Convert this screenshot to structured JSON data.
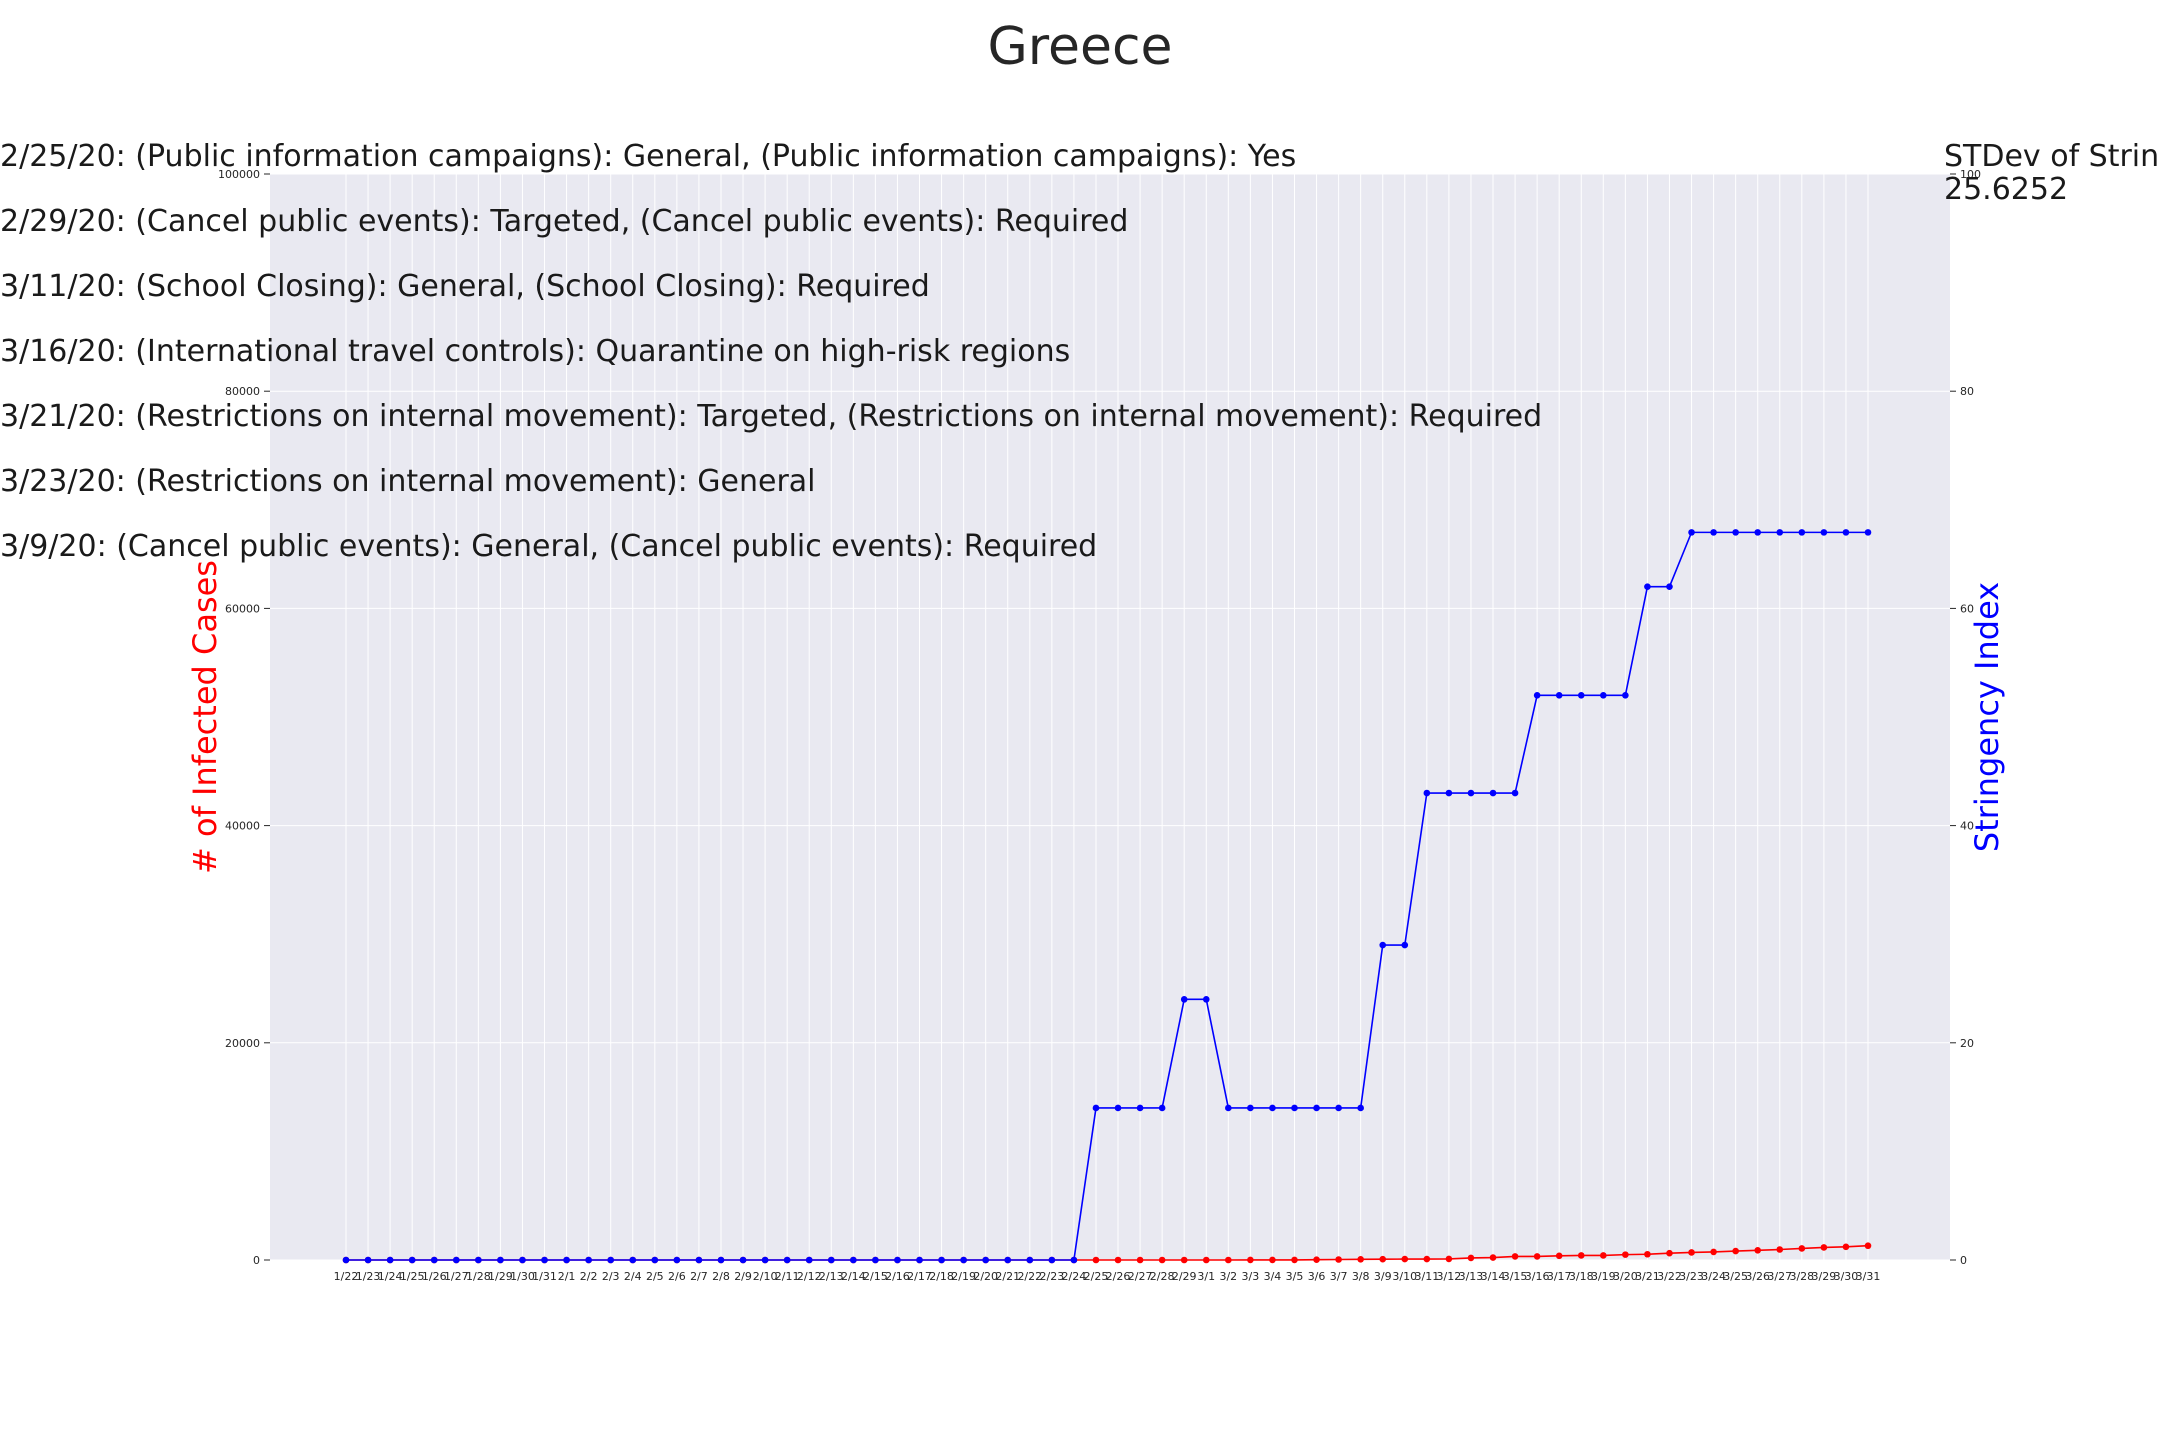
{
  "chart_data": {
    "type": "line",
    "title": "Greece",
    "ylabel_left": "# of Infected Cases",
    "ylabel_right": "Stringency Index",
    "ylim_left": [
      0,
      100000
    ],
    "ylim_right": [
      0,
      100
    ],
    "yticks_left": [
      "0",
      "20000",
      "40000",
      "60000",
      "80000",
      "100000"
    ],
    "yticks_right": [
      "0",
      "20",
      "40",
      "60",
      "80",
      "100"
    ],
    "grid": true,
    "colors": {
      "cases": "#ff0000",
      "stringency": "#0000ff",
      "plot_bg": "#e9e9f1",
      "grid": "#ffffff"
    },
    "categories": [
      "1/22",
      "1/23",
      "1/24",
      "1/25",
      "1/26",
      "1/27",
      "1/28",
      "1/29",
      "1/30",
      "1/31",
      "2/1",
      "2/2",
      "2/3",
      "2/4",
      "2/5",
      "2/6",
      "2/7",
      "2/8",
      "2/9",
      "2/10",
      "2/11",
      "2/12",
      "2/13",
      "2/14",
      "2/15",
      "2/16",
      "2/17",
      "2/18",
      "2/19",
      "2/20",
      "2/21",
      "2/22",
      "2/23",
      "2/24",
      "2/25",
      "2/26",
      "2/27",
      "2/28",
      "2/29",
      "3/1",
      "3/2",
      "3/3",
      "3/4",
      "3/5",
      "3/6",
      "3/7",
      "3/8",
      "3/9",
      "3/10",
      "3/11",
      "3/12",
      "3/13",
      "3/14",
      "3/15",
      "3/16",
      "3/17",
      "3/18",
      "3/19",
      "3/20",
      "3/21",
      "3/22",
      "3/23",
      "3/24",
      "3/25",
      "3/26",
      "3/27",
      "3/28",
      "3/29",
      "3/30",
      "3/31"
    ],
    "series": [
      {
        "axis": "left",
        "values": [
          0,
          0,
          0,
          0,
          0,
          0,
          0,
          0,
          0,
          0,
          0,
          0,
          0,
          0,
          0,
          0,
          0,
          0,
          0,
          0,
          0,
          0,
          0,
          0,
          0,
          0,
          0,
          0,
          0,
          0,
          0,
          0,
          0,
          0,
          0,
          0,
          0,
          0,
          0,
          0,
          0,
          7,
          7,
          9,
          31,
          45,
          66,
          73,
          84,
          89,
          99,
          190,
          228,
          331,
          331,
          387,
          418,
          418,
          495,
          530,
          624,
          695,
          743,
          821,
          892,
          966,
          1061,
          1156,
          1212,
          1314
        ]
      },
      {
        "axis": "right",
        "values": [
          0,
          0,
          0,
          0,
          0,
          0,
          0,
          0,
          0,
          0,
          0,
          0,
          0,
          0,
          0,
          0,
          0,
          0,
          0,
          0,
          0,
          0,
          0,
          0,
          0,
          0,
          0,
          0,
          0,
          0,
          0,
          0,
          0,
          0,
          14,
          14,
          14,
          14,
          24,
          24,
          14,
          14,
          14,
          14,
          14,
          14,
          14,
          29,
          29,
          43,
          43,
          43,
          43,
          43,
          52,
          52,
          52,
          52,
          52,
          62,
          62,
          67,
          67,
          67,
          67,
          67,
          67,
          67,
          67,
          67
        ]
      }
    ],
    "annotations": [
      "2/25/20: (Public information campaigns): General, (Public information campaigns): Yes",
      "2/29/20: (Cancel public events): Targeted, (Cancel public events): Required",
      "3/11/20: (School Closing): General, (School Closing): Required",
      "3/16/20: (International travel controls): Quarantine on high-risk regions",
      "3/21/20: (Restrictions on internal movement): Targeted, (Restrictions on internal movement): Required",
      "3/23/20: (Restrictions on internal movement): General",
      "3/9/20: (Cancel public events): General, (Cancel public events): Required"
    ],
    "stdev_label": "STDev of Stringency",
    "stdev_value": "25.6252"
  }
}
